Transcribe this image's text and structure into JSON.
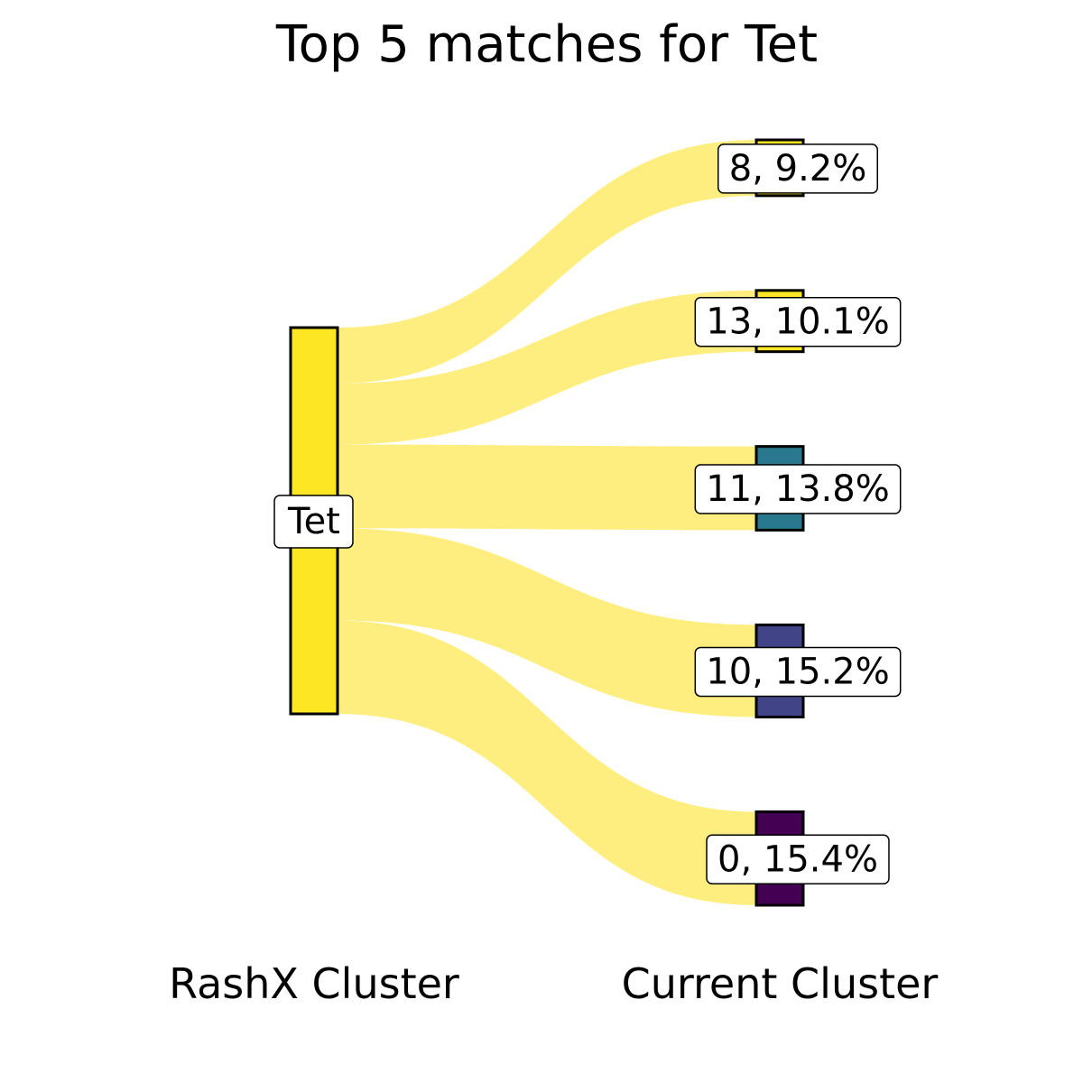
{
  "chart_data": {
    "type": "sankey",
    "title": "Top 5 matches for Tet",
    "source_axis_label": "RashX Cluster",
    "target_axis_label": "Current Cluster",
    "source": {
      "name": "Tet",
      "color": "#fde725"
    },
    "flow_color": "#fdee7f",
    "links": [
      {
        "target": "8",
        "percent": 9.2,
        "label": "8, 9.2%",
        "color": "#fde725"
      },
      {
        "target": "13",
        "percent": 10.1,
        "label": "13, 10.1%",
        "color": "#fde725"
      },
      {
        "target": "11",
        "percent": 13.8,
        "label": "11, 13.8%",
        "color": "#2a788e"
      },
      {
        "target": "10",
        "percent": 15.2,
        "label": "10, 15.2%",
        "color": "#414487"
      },
      {
        "target": "0",
        "percent": 15.4,
        "label": "0, 15.4%",
        "color": "#440154"
      }
    ]
  }
}
